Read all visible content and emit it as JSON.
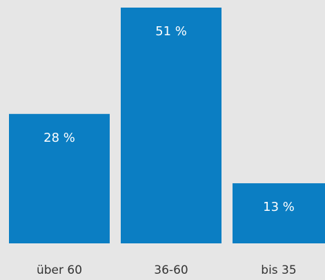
{
  "chart_data": {
    "type": "bar",
    "categories": [
      "über 60",
      "36-60",
      "bis 35"
    ],
    "values": [
      28,
      51,
      13
    ],
    "value_labels": [
      "28 %",
      "51 %",
      "13 %"
    ],
    "color": "#0b7ec3"
  }
}
